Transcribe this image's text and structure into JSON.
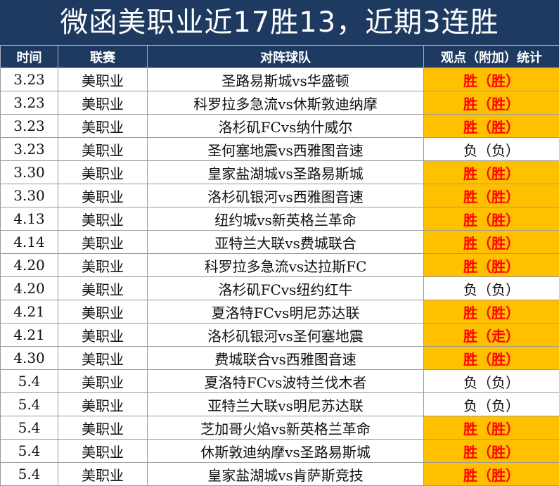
{
  "title": "微函美职业近17胜13，近期3连胜",
  "headers": {
    "time": "时间",
    "league": "联赛",
    "match": "对阵球队",
    "stats": "观点（附加）统计"
  },
  "colors": {
    "header_bg": "#1f3a61",
    "win_bg": "#ffc000",
    "win_text": "#ff0000"
  },
  "rows": [
    {
      "date": "3.23",
      "league": "美职业",
      "match": "圣路易斯城vs华盛顿",
      "result": "胜（胜）",
      "status": "win"
    },
    {
      "date": "3.23",
      "league": "美职业",
      "match": "科罗拉多急流vs休斯敦迪纳摩",
      "result": "胜（胜）",
      "status": "win"
    },
    {
      "date": "3.23",
      "league": "美职业",
      "match": "洛杉矶FCvs纳什威尔",
      "result": "胜（胜）",
      "status": "win"
    },
    {
      "date": "3.23",
      "league": "美职业",
      "match": "圣何塞地震vs西雅图音速",
      "result": "负（负）",
      "status": "loss"
    },
    {
      "date": "3.30",
      "league": "美职业",
      "match": "皇家盐湖城vs圣路易斯城",
      "result": "胜（胜）",
      "status": "win"
    },
    {
      "date": "3.30",
      "league": "美职业",
      "match": "洛杉矶银河vs西雅图音速",
      "result": "胜（胜）",
      "status": "win"
    },
    {
      "date": "4.13",
      "league": "美职业",
      "match": "纽约城vs新英格兰革命",
      "result": "胜（胜）",
      "status": "win"
    },
    {
      "date": "4.14",
      "league": "美职业",
      "match": "亚特兰大联vs费城联合",
      "result": "胜（胜）",
      "status": "win"
    },
    {
      "date": "4.20",
      "league": "美职业",
      "match": "科罗拉多急流vs达拉斯FC",
      "result": "胜（胜）",
      "status": "win"
    },
    {
      "date": "4.20",
      "league": "美职业",
      "match": "洛杉矶FCvs纽约红牛",
      "result": "负（负）",
      "status": "loss"
    },
    {
      "date": "4.21",
      "league": "美职业",
      "match": "夏洛特FCvs明尼苏达联",
      "result": "胜（胜）",
      "status": "win"
    },
    {
      "date": "4.21",
      "league": "美职业",
      "match": "洛杉矶银河vs圣何塞地震",
      "result": "胜（走）",
      "status": "win"
    },
    {
      "date": "4.30",
      "league": "美职业",
      "match": "费城联合vs西雅图音速",
      "result": "胜（胜）",
      "status": "win"
    },
    {
      "date": "5.4",
      "league": "美职业",
      "match": "夏洛特FCvs波特兰伐木者",
      "result": "负（负）",
      "status": "loss"
    },
    {
      "date": "5.4",
      "league": "美职业",
      "match": "亚特兰大联vs明尼苏达联",
      "result": "负（负）",
      "status": "loss"
    },
    {
      "date": "5.4",
      "league": "美职业",
      "match": "芝加哥火焰vs新英格兰革命",
      "result": "胜（胜）",
      "status": "win"
    },
    {
      "date": "5.4",
      "league": "美职业",
      "match": "休斯敦迪纳摩vs圣路易斯城",
      "result": "胜（胜）",
      "status": "win"
    },
    {
      "date": "5.4",
      "league": "美职业",
      "match": "皇家盐湖城vs肯萨斯竞技",
      "result": "胜（胜）",
      "status": "win"
    }
  ]
}
